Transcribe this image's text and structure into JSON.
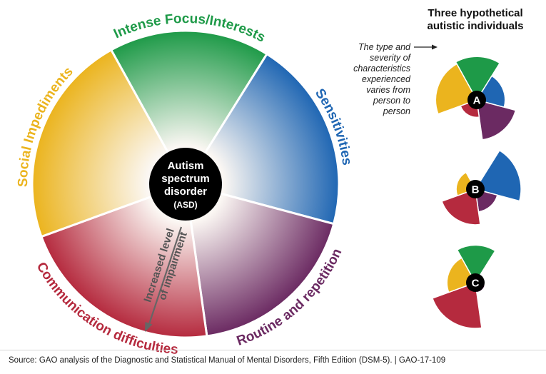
{
  "center": {
    "line1": "Autism",
    "line2": "spectrum",
    "line3": "disorder",
    "line4": "(ASD)"
  },
  "categories": [
    {
      "key": "focus",
      "label": "Intense Focus/Interests",
      "color": "#1e9a48"
    },
    {
      "key": "sens",
      "label": "Sensitivities",
      "color": "#1f66b3"
    },
    {
      "key": "routine",
      "label": "Routine and repetition",
      "color": "#6b2a62"
    },
    {
      "key": "comm",
      "label": "Communication difficulties",
      "color": "#b52a3e"
    },
    {
      "key": "social",
      "label": "Social Impediments",
      "color": "#ebb41e"
    }
  ],
  "arrow": {
    "line1": "Increased level",
    "line2": "of impairment"
  },
  "right_panel": {
    "title_line1": "Three hypothetical",
    "title_line2": "autistic individuals",
    "note_lines": [
      "The type and",
      "severity of",
      "characteristics",
      "experienced",
      "varies from",
      "person to",
      "person"
    ]
  },
  "individuals": [
    {
      "letter": "A",
      "severity": {
        "focus": 0.95,
        "sens": 0.62,
        "routine": 0.88,
        "comm": 0.38,
        "social": 0.9
      }
    },
    {
      "letter": "B",
      "severity": {
        "focus": 0.0,
        "sens": 1.0,
        "routine": 0.5,
        "comm": 0.78,
        "social": 0.42
      }
    },
    {
      "letter": "C",
      "severity": {
        "focus": 0.82,
        "sens": 0.0,
        "routine": 0.22,
        "comm": 1.0,
        "social": 0.62
      }
    }
  ],
  "source": "Source: GAO analysis of the Diagnostic and Statistical Manual of Mental Disorders, Fifth Edition (DSM-5).  |  GAO-17-109"
}
